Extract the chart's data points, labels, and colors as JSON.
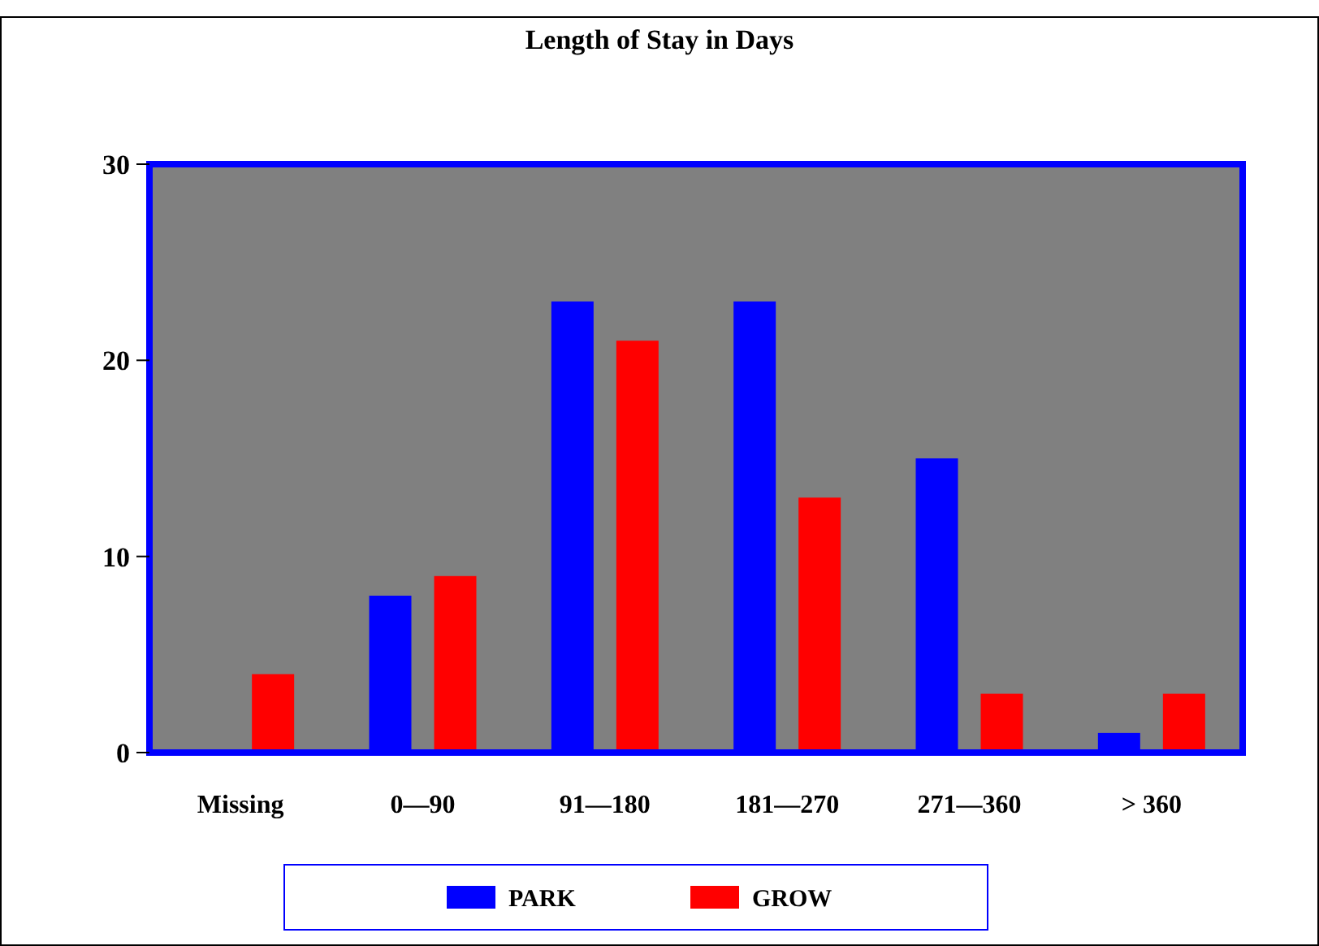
{
  "chart_data": {
    "type": "bar",
    "title": "Length of Stay in Days",
    "categories": [
      "Missing",
      "0—90",
      "91—180",
      "181—270",
      "271—360",
      "> 360"
    ],
    "series": [
      {
        "name": "PARK",
        "color": "#0000ff",
        "values": [
          0,
          8,
          23,
          23,
          15,
          1
        ]
      },
      {
        "name": "GROW",
        "color": "#ff0000",
        "values": [
          4,
          9,
          21,
          13,
          3,
          3
        ]
      }
    ],
    "ylim": [
      0,
      30
    ],
    "yticks": [
      0,
      10,
      20,
      30
    ],
    "grid": false,
    "legend": "bottom"
  }
}
